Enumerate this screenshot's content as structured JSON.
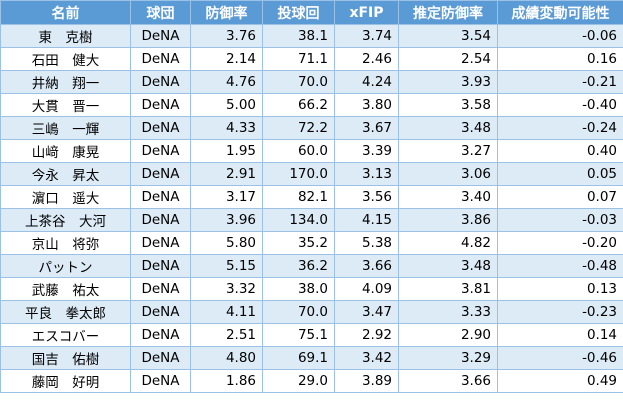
{
  "headers": {
    "name": "名前",
    "team": "球団",
    "era": "防御率",
    "ip": "投球回",
    "xfip": "xFIP",
    "estimated_era": "推定防御率",
    "variance": "成績変動可能性"
  },
  "rows": [
    {
      "name": "東　克樹",
      "team": "DeNA",
      "era": "3.76",
      "ip": "38.1",
      "xfip": "3.74",
      "estimated_era": "3.54",
      "variance": "-0.06"
    },
    {
      "name": "石田　健大",
      "team": "DeNA",
      "era": "2.14",
      "ip": "71.1",
      "xfip": "2.46",
      "estimated_era": "2.54",
      "variance": "0.16"
    },
    {
      "name": "井納　翔一",
      "team": "DeNA",
      "era": "4.76",
      "ip": "70.0",
      "xfip": "4.24",
      "estimated_era": "3.93",
      "variance": "-0.21"
    },
    {
      "name": "大貫　晋一",
      "team": "DeNA",
      "era": "5.00",
      "ip": "66.2",
      "xfip": "3.80",
      "estimated_era": "3.58",
      "variance": "-0.40"
    },
    {
      "name": "三嶋　一輝",
      "team": "DeNA",
      "era": "4.33",
      "ip": "72.2",
      "xfip": "3.67",
      "estimated_era": "3.48",
      "variance": "-0.24"
    },
    {
      "name": "山﨑　康晃",
      "team": "DeNA",
      "era": "1.95",
      "ip": "60.0",
      "xfip": "3.39",
      "estimated_era": "3.27",
      "variance": "0.40"
    },
    {
      "name": "今永　昇太",
      "team": "DeNA",
      "era": "2.91",
      "ip": "170.0",
      "xfip": "3.13",
      "estimated_era": "3.06",
      "variance": "0.05"
    },
    {
      "name": "濵口　遥大",
      "team": "DeNA",
      "era": "3.17",
      "ip": "82.1",
      "xfip": "3.56",
      "estimated_era": "3.40",
      "variance": "0.07"
    },
    {
      "name": "上茶谷　大河",
      "team": "DeNA",
      "era": "3.96",
      "ip": "134.0",
      "xfip": "4.15",
      "estimated_era": "3.86",
      "variance": "-0.03"
    },
    {
      "name": "京山　将弥",
      "team": "DeNA",
      "era": "5.80",
      "ip": "35.2",
      "xfip": "5.38",
      "estimated_era": "4.82",
      "variance": "-0.20"
    },
    {
      "name": "パットン",
      "team": "DeNA",
      "era": "5.15",
      "ip": "36.2",
      "xfip": "3.66",
      "estimated_era": "3.48",
      "variance": "-0.48"
    },
    {
      "name": "武藤　祐太",
      "team": "DeNA",
      "era": "3.32",
      "ip": "38.0",
      "xfip": "4.09",
      "estimated_era": "3.81",
      "variance": "0.13"
    },
    {
      "name": "平良　拳太郎",
      "team": "DeNA",
      "era": "4.11",
      "ip": "70.0",
      "xfip": "3.47",
      "estimated_era": "3.33",
      "variance": "-0.23"
    },
    {
      "name": "エスコバー",
      "team": "DeNA",
      "era": "2.51",
      "ip": "75.1",
      "xfip": "2.92",
      "estimated_era": "2.90",
      "variance": "0.14"
    },
    {
      "name": "国吉　佑樹",
      "team": "DeNA",
      "era": "4.80",
      "ip": "69.1",
      "xfip": "3.42",
      "estimated_era": "3.29",
      "variance": "-0.46"
    },
    {
      "name": "藤岡　好明",
      "team": "DeNA",
      "era": "1.86",
      "ip": "29.0",
      "xfip": "3.89",
      "estimated_era": "3.66",
      "variance": "0.49"
    }
  ],
  "colors": {
    "header_bg": "#5b9bd5",
    "header_text": "#ffffff",
    "band_bg": "#ddebf7",
    "row_bg": "#ffffff",
    "grid": "#9bc2e6"
  }
}
